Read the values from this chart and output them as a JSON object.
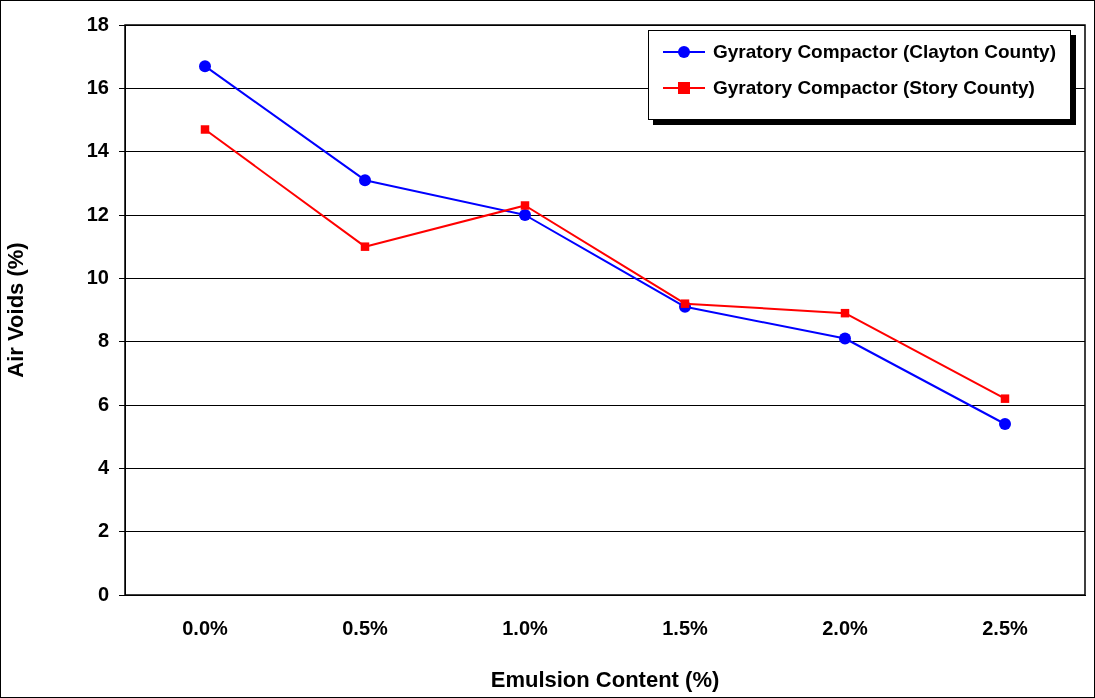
{
  "chart_data": {
    "type": "line",
    "xlabel": "Emulsion Content (%)",
    "ylabel": "Air Voids (%)",
    "categories": [
      "0.0%",
      "0.5%",
      "1.0%",
      "1.5%",
      "2.0%",
      "2.5%"
    ],
    "series": [
      {
        "name": "Gyratory Compactor (Clayton County)",
        "color": "#0000ff",
        "marker": "circle",
        "values": [
          16.7,
          13.1,
          12.0,
          9.1,
          8.1,
          5.4
        ]
      },
      {
        "name": "Gyratory Compactor (Story County)",
        "color": "#ff0000",
        "marker": "square",
        "values": [
          14.7,
          11.0,
          12.3,
          9.2,
          8.9,
          6.2
        ]
      }
    ],
    "ylim": [
      0,
      18
    ],
    "yticks": [
      0,
      2,
      4,
      6,
      8,
      10,
      12,
      14,
      16,
      18
    ],
    "grid": "y",
    "legend": "top right"
  }
}
